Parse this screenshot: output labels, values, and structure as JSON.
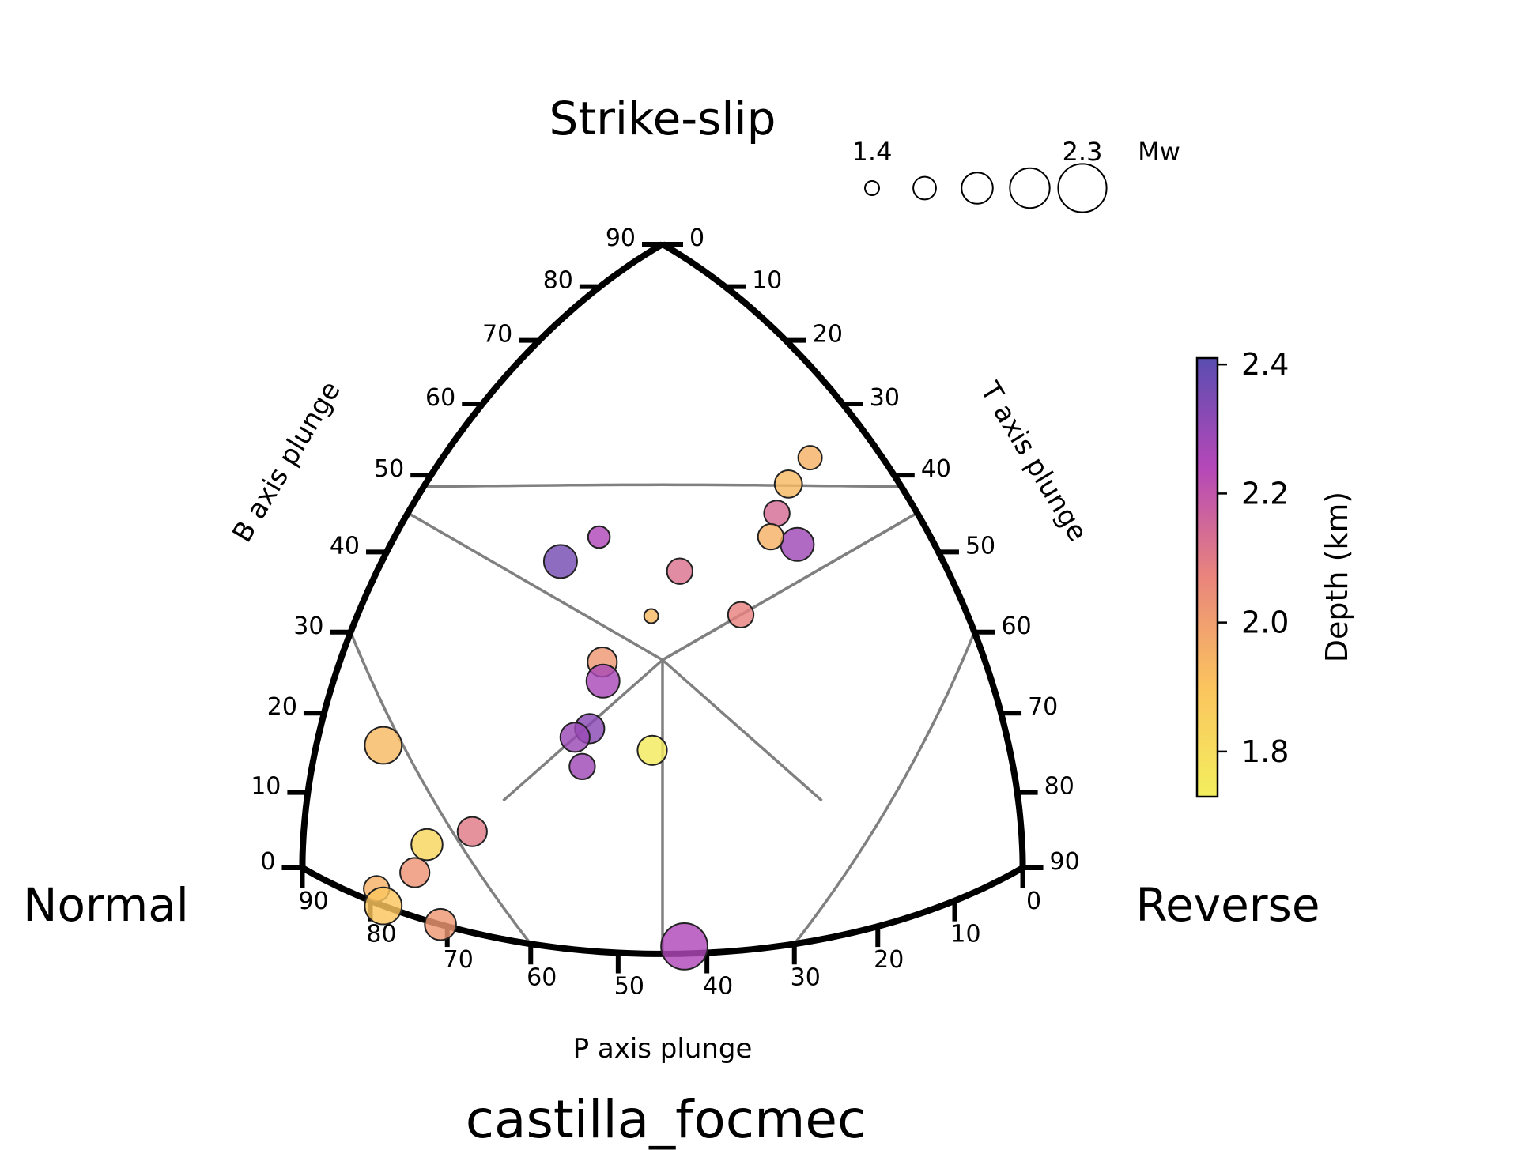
{
  "chart_data": {
    "type": "scatter",
    "subtype": "ternary focal mechanism (Kaverina) diagram",
    "title": "castilla_focmec",
    "corner_labels": {
      "top": "Strike-slip",
      "left": "Normal",
      "right": "Reverse"
    },
    "axis_labels": {
      "left": "B axis plunge",
      "right": "T axis plunge",
      "bottom": "P axis plunge"
    },
    "ticks": {
      "b_axis": [
        0,
        10,
        20,
        30,
        40,
        50,
        60,
        70,
        80,
        90
      ],
      "t_axis": [
        0,
        10,
        20,
        30,
        40,
        50,
        60,
        70,
        80,
        90
      ],
      "p_axis": [
        90,
        80,
        70,
        60,
        50,
        40,
        30,
        20,
        10,
        0
      ]
    },
    "size_legend": {
      "label": "Mw",
      "min_label": "1.4",
      "max_label": "2.3",
      "values": [
        1.4,
        1.625,
        1.85,
        2.075,
        2.3
      ]
    },
    "colorbar": {
      "label": "Depth (km)",
      "ticks": [
        "1.8",
        "2.0",
        "2.2",
        "2.4"
      ],
      "range": [
        1.73,
        2.41
      ],
      "colormap": "plasma_r"
    },
    "points": [
      {
        "p": 43,
        "b": 1,
        "t": 48,
        "mw": 2.25,
        "depth": 2.25
      },
      {
        "p": 8,
        "b": 58,
        "t": 34,
        "mw": 1.65,
        "depth": 1.95
      },
      {
        "p": 12,
        "b": 54,
        "t": 34,
        "mw": 1.75,
        "depth": 1.93
      },
      {
        "p": 15,
        "b": 50,
        "t": 35,
        "mw": 1.7,
        "depth": 2.14
      },
      {
        "p": 15,
        "b": 46,
        "t": 39,
        "mw": 1.9,
        "depth": 2.28
      },
      {
        "p": 17,
        "b": 47,
        "t": 36,
        "mw": 1.7,
        "depth": 1.95
      },
      {
        "p": 32,
        "b": 47,
        "t": 21,
        "mw": 1.6,
        "depth": 2.25
      },
      {
        "p": 37,
        "b": 44,
        "t": 19,
        "mw": 1.9,
        "depth": 2.36
      },
      {
        "p": 27,
        "b": 43,
        "t": 30,
        "mw": 1.7,
        "depth": 2.12
      },
      {
        "p": 24,
        "b": 38,
        "t": 38,
        "mw": 1.7,
        "depth": 2.08
      },
      {
        "p": 32,
        "b": 38,
        "t": 30,
        "mw": 1.4,
        "depth": 1.93
      },
      {
        "p": 39,
        "b": 33,
        "t": 28,
        "mw": 1.8,
        "depth": 2.02
      },
      {
        "p": 40,
        "b": 31,
        "t": 29,
        "mw": 1.9,
        "depth": 2.26
      },
      {
        "p": 44,
        "b": 26,
        "t": 30,
        "mw": 1.8,
        "depth": 2.32
      },
      {
        "p": 46,
        "b": 25,
        "t": 29,
        "mw": 1.8,
        "depth": 2.29
      },
      {
        "p": 47,
        "b": 22,
        "t": 31,
        "mw": 1.7,
        "depth": 2.28
      },
      {
        "p": 39,
        "b": 24,
        "t": 37,
        "mw": 1.8,
        "depth": 1.75
      },
      {
        "p": 71,
        "b": 20,
        "t": 9,
        "mw": 2.0,
        "depth": 1.93
      },
      {
        "p": 65,
        "b": 13,
        "t": 22,
        "mw": 1.8,
        "depth": 2.1
      },
      {
        "p": 73,
        "b": 10,
        "t": 17,
        "mw": 1.85,
        "depth": 1.83
      },
      {
        "p": 78,
        "b": 6,
        "t": 16,
        "mw": 1.8,
        "depth": 2.03
      },
      {
        "p": 87,
        "b": 2,
        "t": 11,
        "mw": 1.7,
        "depth": 1.95
      },
      {
        "p": 88,
        "b": 0,
        "t": 12,
        "mw": 2.0,
        "depth": 1.9
      },
      {
        "p": 80,
        "b": 0,
        "t": 20,
        "mw": 1.85,
        "depth": 2.02
      }
    ]
  }
}
